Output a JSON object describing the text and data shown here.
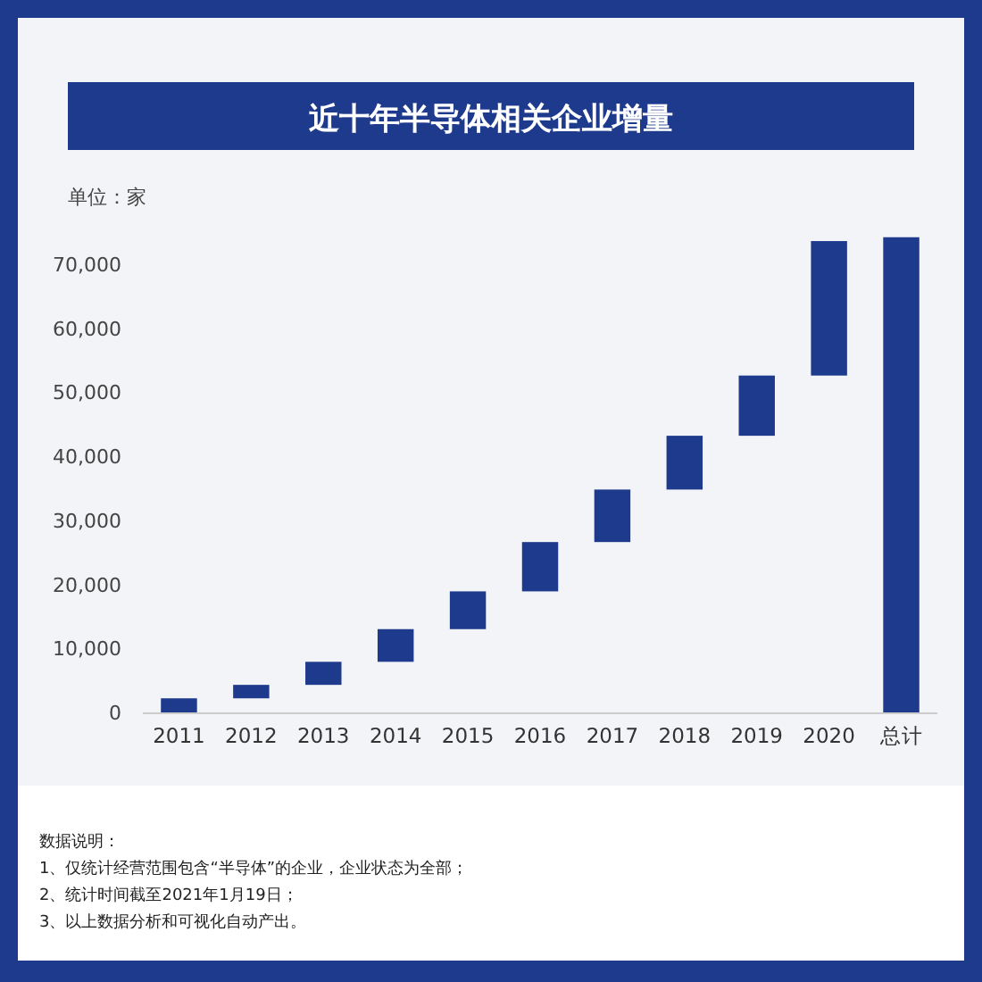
{
  "chart_data": {
    "type": "bar",
    "title": "近十年半导体相关企业增量",
    "ylabel": "单位：家",
    "categories": [
      "2011",
      "2012",
      "2013",
      "2014",
      "2015",
      "2016",
      "2017",
      "2018",
      "2019",
      "2020",
      "总计"
    ],
    "values": [
      2200,
      2100,
      3600,
      5100,
      5900,
      7700,
      8200,
      8400,
      9400,
      21000,
      74200
    ],
    "base": [
      0,
      2200,
      4300,
      7900,
      13000,
      18900,
      26600,
      34800,
      43200,
      52600,
      0
    ],
    "color": "#1e3a8c",
    "ylim": [
      0,
      75000
    ],
    "yticks": [
      {
        "value": 0,
        "label": "0"
      },
      {
        "value": 10000,
        "label": "10,000"
      },
      {
        "value": 20000,
        "label": "20,000"
      },
      {
        "value": 30000,
        "label": "30,000"
      },
      {
        "value": 40000,
        "label": "40,000"
      },
      {
        "value": 50000,
        "label": "50,000"
      },
      {
        "value": 60000,
        "label": "60,000"
      },
      {
        "value": 70000,
        "label": "70,000"
      }
    ],
    "grid": false,
    "annotations": [
      "数据说明：",
      "1、仅统计经营范围包含“半导体”的企业，企业状态为全部；",
      "2、统计时间截至2021年1月19日；",
      "3、以上数据分析和可视化自动产出。"
    ]
  }
}
